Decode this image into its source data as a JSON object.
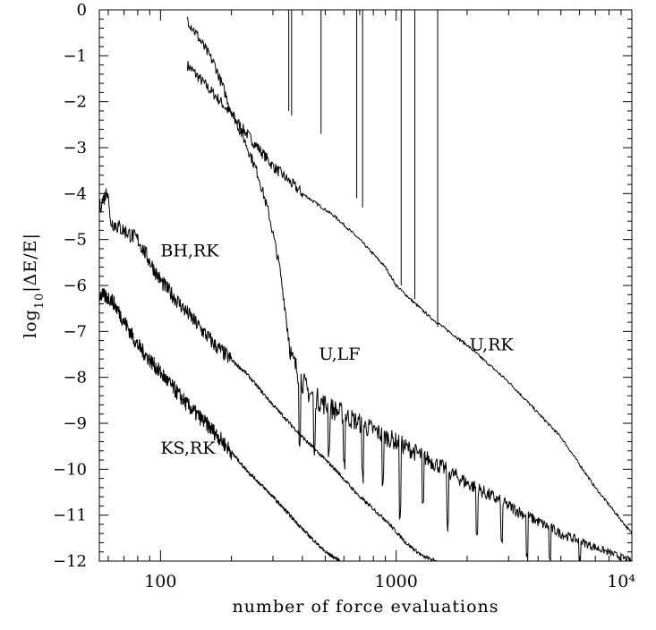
{
  "chart_data": {
    "type": "line",
    "title": "",
    "xlabel": "number of force evaluations",
    "ylabel": "log10|ΔE/E|",
    "x_scale": "log",
    "xlim": [
      55,
      10000
    ],
    "ylim": [
      -12,
      0
    ],
    "grid": false,
    "x_ticks": [
      {
        "value": 100,
        "label": "100"
      },
      {
        "value": 1000,
        "label": "1000"
      },
      {
        "value": 10000,
        "label": "10⁴"
      }
    ],
    "y_ticks": [
      {
        "value": 0,
        "label": "0"
      },
      {
        "value": -1,
        "label": "−1"
      },
      {
        "value": -2,
        "label": "−2"
      },
      {
        "value": -3,
        "label": "−3"
      },
      {
        "value": -4,
        "label": "−4"
      },
      {
        "value": -5,
        "label": "−5"
      },
      {
        "value": -6,
        "label": "−6"
      },
      {
        "value": -7,
        "label": "−7"
      },
      {
        "value": -8,
        "label": "−8"
      },
      {
        "value": -9,
        "label": "−9"
      },
      {
        "value": -10,
        "label": "−10"
      },
      {
        "value": -11,
        "label": "−11"
      },
      {
        "value": -12,
        "label": "−12"
      }
    ],
    "series": [
      {
        "name": "U,RK",
        "label_at": {
          "x": 2050,
          "y": -7.3
        },
        "x": [
          130,
          180,
          250,
          300,
          400,
          550,
          700,
          900,
          1000,
          1150,
          1400,
          2000,
          3000,
          5000,
          7000,
          10000
        ],
        "y": [
          -1.2,
          -2.0,
          -2.9,
          -3.4,
          -4.0,
          -4.5,
          -5.0,
          -5.6,
          -6.0,
          -6.3,
          -6.7,
          -7.3,
          -8.1,
          -9.3,
          -10.4,
          -11.4
        ],
        "spikes": [
          {
            "x": 350,
            "top": 0,
            "bottom": -2.2
          },
          {
            "x": 360,
            "top": 0,
            "bottom": -2.3
          },
          {
            "x": 480,
            "top": 0,
            "bottom": -2.7
          },
          {
            "x": 680,
            "top": 0,
            "bottom": -4.1
          },
          {
            "x": 720,
            "top": 0,
            "bottom": -4.3
          },
          {
            "x": 1050,
            "top": 0,
            "bottom": -6.0
          },
          {
            "x": 1200,
            "top": 0,
            "bottom": -6.3
          },
          {
            "x": 1500,
            "top": 0,
            "bottom": -6.9
          }
        ]
      },
      {
        "name": "U,LF",
        "label_at": {
          "x": 470,
          "y": -7.5
        },
        "x": [
          130,
          170,
          200,
          230,
          260,
          290,
          320,
          340,
          360,
          420,
          500,
          700,
          1000,
          1500,
          2000,
          3000,
          5000,
          7000,
          10000
        ],
        "y": [
          -0.2,
          -1.2,
          -2.2,
          -2.9,
          -3.6,
          -4.5,
          -5.6,
          -6.6,
          -7.6,
          -8.3,
          -8.6,
          -9.0,
          -9.4,
          -9.9,
          -10.3,
          -10.8,
          -11.4,
          -11.7,
          -12.0
        ],
        "dips": [
          {
            "x": 390,
            "depth": 1.3
          },
          {
            "x": 450,
            "depth": 1.2
          },
          {
            "x": 520,
            "depth": 0.9
          },
          {
            "x": 600,
            "depth": 1.0
          },
          {
            "x": 720,
            "depth": 1.1
          },
          {
            "x": 880,
            "depth": 1.0
          },
          {
            "x": 1040,
            "depth": 1.5
          },
          {
            "x": 1300,
            "depth": 1.1
          },
          {
            "x": 1650,
            "depth": 1.2
          },
          {
            "x": 2200,
            "depth": 1.0
          },
          {
            "x": 2800,
            "depth": 0.9
          },
          {
            "x": 3600,
            "depth": 0.9
          },
          {
            "x": 4500,
            "depth": 0.7
          },
          {
            "x": 6000,
            "depth": 0.6
          }
        ]
      },
      {
        "name": "BH,RK",
        "label_at": {
          "x": 100,
          "y": -5.25
        },
        "x": [
          55,
          60,
          61,
          80,
          100,
          130,
          170,
          230,
          300,
          400,
          550,
          700,
          900,
          1100,
          1300,
          1480
        ],
        "y": [
          -4.3,
          -3.9,
          -4.6,
          -5.0,
          -5.9,
          -6.6,
          -7.3,
          -7.9,
          -8.6,
          -9.3,
          -10.0,
          -10.6,
          -11.1,
          -11.6,
          -11.9,
          -12.0
        ]
      },
      {
        "name": "KS,RK",
        "label_at": {
          "x": 100,
          "y": -9.55
        },
        "x": [
          55,
          62,
          80,
          100,
          130,
          170,
          230,
          300,
          400,
          500,
          580
        ],
        "y": [
          -6.2,
          -6.3,
          -7.3,
          -7.9,
          -8.6,
          -9.2,
          -10.0,
          -10.6,
          -11.3,
          -11.8,
          -12.0
        ]
      }
    ]
  }
}
